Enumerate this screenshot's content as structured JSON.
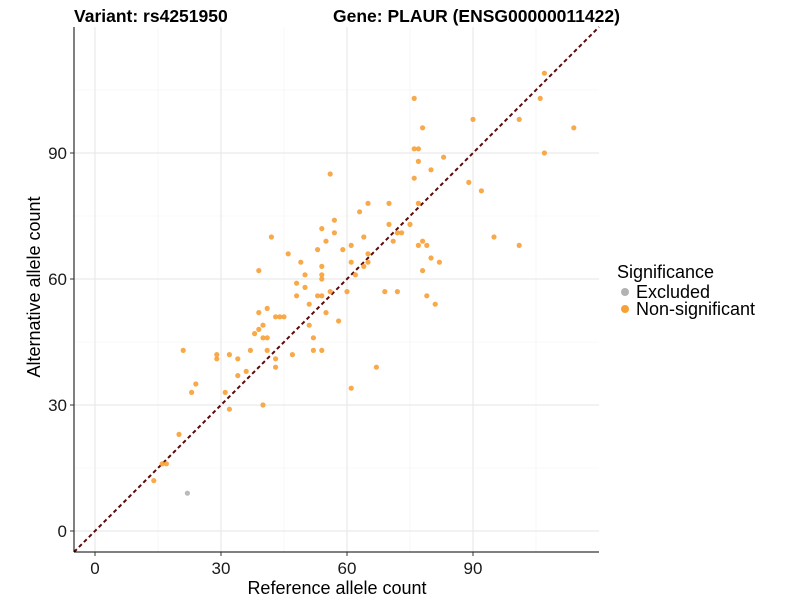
{
  "chart_data": {
    "type": "scatter",
    "title_left": "Variant: rs4251950",
    "title_right": "Gene: PLAUR (ENSG00000011422)",
    "xlabel": "Reference allele count",
    "ylabel": "Alternative allele count",
    "xlim": [
      -5,
      120
    ],
    "ylim": [
      -5,
      120
    ],
    "xticks": [
      0,
      30,
      60,
      90
    ],
    "yticks": [
      0,
      30,
      60,
      90
    ],
    "grid": true,
    "legend_position": "right",
    "legend_title": "Significance",
    "reference_line": {
      "type": "identity",
      "color": "#5c0a0a",
      "style": "dashed"
    },
    "series": [
      {
        "name": "Excluded",
        "color": "#b3b3b3",
        "points": [
          [
            22,
            9
          ]
        ]
      },
      {
        "name": "Non-significant",
        "color": "#f7a035",
        "points": [
          [
            14,
            12
          ],
          [
            16,
            16
          ],
          [
            17,
            16
          ],
          [
            20,
            23
          ],
          [
            21,
            43
          ],
          [
            23,
            33
          ],
          [
            24,
            35
          ],
          [
            29,
            41
          ],
          [
            29,
            42
          ],
          [
            31,
            33
          ],
          [
            32,
            29
          ],
          [
            32,
            42
          ],
          [
            34,
            41
          ],
          [
            34,
            37
          ],
          [
            36,
            38
          ],
          [
            37,
            43
          ],
          [
            38,
            47
          ],
          [
            39,
            48
          ],
          [
            39,
            52
          ],
          [
            39,
            62
          ],
          [
            40,
            30
          ],
          [
            40,
            46
          ],
          [
            40,
            49
          ],
          [
            41,
            43
          ],
          [
            41,
            53
          ],
          [
            41,
            46
          ],
          [
            42,
            70
          ],
          [
            43,
            39
          ],
          [
            43,
            41
          ],
          [
            43,
            51
          ],
          [
            44,
            51
          ],
          [
            45,
            51
          ],
          [
            46,
            66
          ],
          [
            47,
            42
          ],
          [
            48,
            59
          ],
          [
            48,
            56
          ],
          [
            49,
            64
          ],
          [
            50,
            58
          ],
          [
            50,
            61
          ],
          [
            51,
            54
          ],
          [
            51,
            49
          ],
          [
            52,
            43
          ],
          [
            52,
            46
          ],
          [
            53,
            56
          ],
          [
            53,
            67
          ],
          [
            54,
            72
          ],
          [
            54,
            63
          ],
          [
            54,
            61
          ],
          [
            54,
            60
          ],
          [
            54,
            56
          ],
          [
            54,
            43
          ],
          [
            55,
            69
          ],
          [
            55,
            52
          ],
          [
            56,
            85
          ],
          [
            56,
            57
          ],
          [
            57,
            74
          ],
          [
            57,
            71
          ],
          [
            58,
            50
          ],
          [
            59,
            67
          ],
          [
            60,
            57
          ],
          [
            61,
            68
          ],
          [
            61,
            64
          ],
          [
            61,
            34
          ],
          [
            62,
            61
          ],
          [
            63,
            76
          ],
          [
            64,
            70
          ],
          [
            64,
            63
          ],
          [
            65,
            78
          ],
          [
            65,
            66
          ],
          [
            65,
            64
          ],
          [
            67,
            39
          ],
          [
            69,
            57
          ],
          [
            70,
            73
          ],
          [
            70,
            78
          ],
          [
            71,
            69
          ],
          [
            72,
            57
          ],
          [
            72,
            71
          ],
          [
            73,
            71
          ],
          [
            75,
            73
          ],
          [
            76,
            103
          ],
          [
            76,
            84
          ],
          [
            76,
            91
          ],
          [
            77,
            68
          ],
          [
            77,
            91
          ],
          [
            77,
            88
          ],
          [
            77,
            78
          ],
          [
            78,
            96
          ],
          [
            78,
            62
          ],
          [
            78,
            69
          ],
          [
            79,
            56
          ],
          [
            79,
            68
          ],
          [
            80,
            65
          ],
          [
            80,
            86
          ],
          [
            81,
            54
          ],
          [
            82,
            64
          ],
          [
            83,
            89
          ],
          [
            89,
            83
          ],
          [
            90,
            98
          ],
          [
            92,
            81
          ],
          [
            95,
            70
          ],
          [
            101,
            98
          ],
          [
            101,
            68
          ],
          [
            106,
            103
          ],
          [
            107,
            109
          ],
          [
            107,
            90
          ],
          [
            114,
            96
          ]
        ]
      }
    ]
  }
}
